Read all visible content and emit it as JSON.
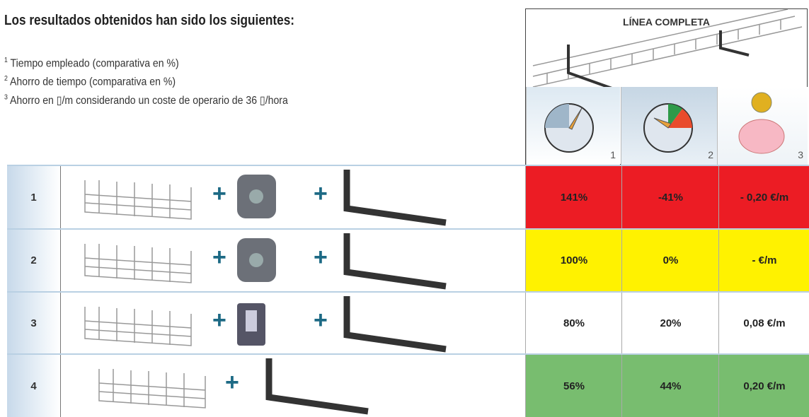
{
  "header": {
    "title": "Los resultados obtenidos han sido los siguientes:"
  },
  "notes": [
    {
      "number": "1",
      "text": "Tiempo empleado (comparativa en %)"
    },
    {
      "number": "2",
      "text": "Ahorro de tiempo (comparativa en %)"
    },
    {
      "number": "3",
      "text": "Ahorro en ▯/m considerando un coste de operario de 36 ▯/hora"
    }
  ],
  "panel": {
    "title": "LÍNEA COMPLETA",
    "icons": [
      "1",
      "2",
      "3"
    ]
  },
  "table": {
    "rows": [
      {
        "label": "1",
        "connectors": [
          "+",
          "+"
        ],
        "cells": [
          "141%",
          "-41%",
          "- 0,20 €/m"
        ],
        "color": "#ec1c24"
      },
      {
        "label": "2",
        "connectors": [
          "+",
          "+"
        ],
        "cells": [
          "100%",
          "0%",
          "- €/m"
        ],
        "color": "#fff200"
      },
      {
        "label": "3",
        "connectors": [
          "+",
          "+"
        ],
        "cells": [
          "80%",
          "20%",
          "0,08 €/m"
        ],
        "color": "#ffffff"
      },
      {
        "label": "4",
        "connectors": [
          "+"
        ],
        "cells": [
          "56%",
          "44%",
          "0,20 €/m"
        ],
        "color": "#78bd6f"
      }
    ]
  }
}
